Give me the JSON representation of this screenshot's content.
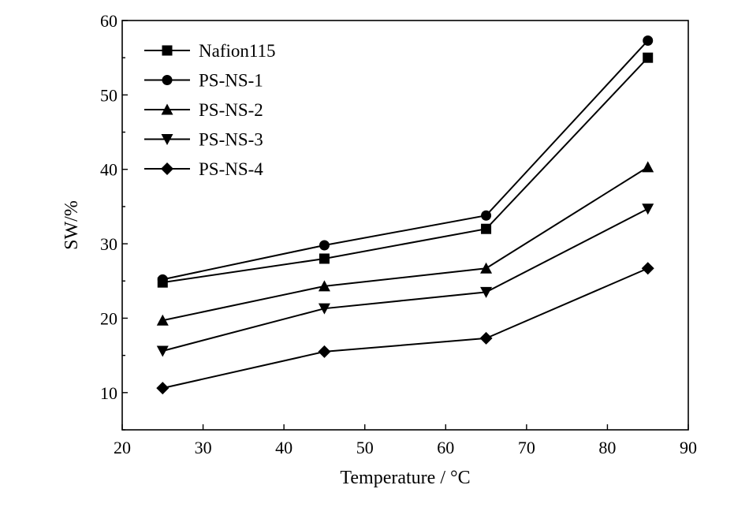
{
  "chart_data": {
    "type": "line",
    "title": "",
    "xlabel": "Temperature / °C",
    "ylabel": "SW/%",
    "xlim": [
      20,
      90
    ],
    "ylim": [
      5,
      60
    ],
    "xticks": [
      20,
      30,
      40,
      50,
      60,
      70,
      80,
      90
    ],
    "yticks": [
      10,
      20,
      30,
      40,
      50,
      60
    ],
    "grid": false,
    "legend_position": "top-left",
    "x": [
      25,
      45,
      65,
      85
    ],
    "series": [
      {
        "name": "Nafion115",
        "marker": "square",
        "values": [
          24.8,
          28.0,
          32.0,
          55.0
        ]
      },
      {
        "name": "PS-NS-1",
        "marker": "circle",
        "values": [
          25.2,
          29.8,
          33.8,
          57.3
        ]
      },
      {
        "name": "PS-NS-2",
        "marker": "triangle-up",
        "values": [
          19.7,
          24.3,
          26.7,
          40.3
        ]
      },
      {
        "name": "PS-NS-3",
        "marker": "triangle-down",
        "values": [
          15.6,
          21.3,
          23.5,
          34.7
        ]
      },
      {
        "name": "PS-NS-4",
        "marker": "diamond",
        "values": [
          10.6,
          15.5,
          17.3,
          26.7
        ]
      }
    ]
  }
}
